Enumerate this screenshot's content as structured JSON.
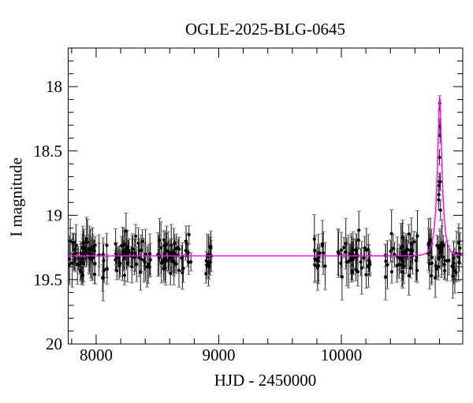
{
  "title": "OGLE-2025-BLG-0645",
  "axes": {
    "xlabel": "HJD - 2450000",
    "ylabel": "I magnitude",
    "x_ticks_major": [
      8000,
      9000,
      10000
    ],
    "x_tick_labels": [
      "8000",
      "9000",
      "10000"
    ],
    "x_minor_step": 200,
    "y_ticks_major": [
      18,
      18.5,
      19,
      19.5,
      20
    ],
    "y_tick_labels": [
      "18",
      "18.5",
      "19",
      "19.5",
      "20"
    ],
    "y_minor_step": 0.1
  },
  "colors": {
    "background": "#ffffff",
    "axis": "#000000",
    "point": "#000000",
    "error_bar": "#1a1a1a",
    "error_cap": "#888888",
    "model": "#ff00ff"
  },
  "chart_data": {
    "type": "scatter",
    "title": "OGLE-2025-BLG-0645",
    "xlabel": "HJD - 2450000",
    "ylabel": "I magnitude",
    "xlim": [
      7772,
      10990
    ],
    "ylim": [
      17.7,
      20.0
    ],
    "y_axis_inverted": true,
    "grid": false,
    "legend": "none",
    "baseline_mag": 19.31,
    "model": {
      "kind": "paczynski",
      "I0": 19.315,
      "t0": 10802,
      "tE": 38,
      "u0": 0.335,
      "peak_mag": 18.09
    },
    "seasons": [
      {
        "t_start": 7772,
        "t_end": 8090,
        "n": 58,
        "seed": 3
      },
      {
        "t_start": 8148,
        "t_end": 8448,
        "n": 55,
        "seed": 11
      },
      {
        "t_start": 8503,
        "t_end": 8776,
        "n": 52,
        "seed": 27
      },
      {
        "t_start": 8894,
        "t_end": 8940,
        "n": 13,
        "seed": 5
      },
      {
        "t_start": 9776,
        "t_end": 9870,
        "n": 14,
        "seed": 9
      },
      {
        "t_start": 9968,
        "t_end": 10236,
        "n": 44,
        "seed": 42
      },
      {
        "t_start": 10348,
        "t_end": 10623,
        "n": 48,
        "seed": 77
      },
      {
        "t_start": 10688,
        "t_end": 10976,
        "n": 48,
        "seed": 123
      }
    ],
    "baseline_stats": {
      "mag_mean": 19.315,
      "mag_sigma": 0.075,
      "mag_min": 19.03,
      "mag_max": 19.6,
      "err_base": 0.07,
      "err_spread": 0.14
    },
    "event_points": [
      [
        10793,
        18.88,
        0.08
      ],
      [
        10795,
        18.84,
        0.07
      ],
      [
        10797,
        18.77,
        0.07
      ],
      [
        10798,
        18.74,
        0.07
      ],
      [
        10800,
        18.55,
        0.06
      ],
      [
        10802,
        18.13,
        0.06
      ],
      [
        10803,
        18.31,
        0.06
      ],
      [
        10805,
        18.38,
        0.06
      ],
      [
        10807,
        18.74,
        0.07
      ],
      [
        10809,
        18.96,
        0.08
      ]
    ]
  }
}
